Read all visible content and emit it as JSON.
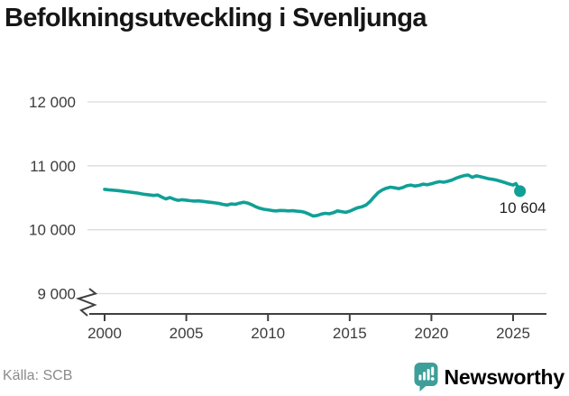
{
  "title": "Befolkningsutveckling i Svenljunga",
  "footer": {
    "source": "Källa: SCB",
    "brand": "Newsworthy"
  },
  "colors": {
    "line": "#10a096",
    "grid": "#dcdcdc",
    "axis": "#3f3f3f",
    "brand_teal": "#3e9e99",
    "end_label_text": "#1f1f1f"
  },
  "chart_data": {
    "type": "line",
    "title": "Befolkningsutveckling i Svenljunga",
    "xlabel": "",
    "ylabel": "",
    "ylim": [
      9000,
      12000
    ],
    "xlim": [
      2000,
      2025.5
    ],
    "y_axis_break": true,
    "grid": true,
    "legend": "none",
    "x_ticks": [
      2000,
      2005,
      2010,
      2015,
      2020,
      2025
    ],
    "y_ticks": [
      {
        "value": 9000,
        "label": "9 000"
      },
      {
        "value": 10000,
        "label": "10 000"
      },
      {
        "value": 11000,
        "label": "11 000"
      },
      {
        "value": 12000,
        "label": "12 000"
      }
    ],
    "end_label": "10 604",
    "series": [
      {
        "name": "Befolkning",
        "points": [
          [
            2000,
            10632
          ],
          [
            2000.25,
            10625
          ],
          [
            2000.5,
            10620
          ],
          [
            2000.75,
            10613
          ],
          [
            2001,
            10606
          ],
          [
            2001.25,
            10598
          ],
          [
            2001.5,
            10590
          ],
          [
            2001.75,
            10583
          ],
          [
            2002,
            10574
          ],
          [
            2002.25,
            10562
          ],
          [
            2002.5,
            10552
          ],
          [
            2002.75,
            10545
          ],
          [
            2003,
            10536
          ],
          [
            2003.25,
            10544
          ],
          [
            2003.5,
            10510
          ],
          [
            2003.75,
            10482
          ],
          [
            2004,
            10504
          ],
          [
            2004.25,
            10478
          ],
          [
            2004.5,
            10460
          ],
          [
            2004.75,
            10470
          ],
          [
            2005,
            10462
          ],
          [
            2005.25,
            10454
          ],
          [
            2005.5,
            10448
          ],
          [
            2005.75,
            10452
          ],
          [
            2006,
            10444
          ],
          [
            2006.25,
            10436
          ],
          [
            2006.5,
            10428
          ],
          [
            2006.75,
            10420
          ],
          [
            2007,
            10412
          ],
          [
            2007.25,
            10396
          ],
          [
            2007.5,
            10386
          ],
          [
            2007.75,
            10404
          ],
          [
            2008,
            10398
          ],
          [
            2008.25,
            10416
          ],
          [
            2008.5,
            10430
          ],
          [
            2008.75,
            10418
          ],
          [
            2009,
            10392
          ],
          [
            2009.25,
            10360
          ],
          [
            2009.5,
            10336
          ],
          [
            2009.75,
            10320
          ],
          [
            2010,
            10312
          ],
          [
            2010.25,
            10300
          ],
          [
            2010.5,
            10294
          ],
          [
            2010.75,
            10302
          ],
          [
            2011,
            10300
          ],
          [
            2011.25,
            10294
          ],
          [
            2011.5,
            10298
          ],
          [
            2011.75,
            10290
          ],
          [
            2012,
            10286
          ],
          [
            2012.25,
            10272
          ],
          [
            2012.5,
            10246
          ],
          [
            2012.75,
            10216
          ],
          [
            2013,
            10222
          ],
          [
            2013.25,
            10244
          ],
          [
            2013.5,
            10256
          ],
          [
            2013.75,
            10250
          ],
          [
            2014,
            10266
          ],
          [
            2014.25,
            10294
          ],
          [
            2014.5,
            10284
          ],
          [
            2014.75,
            10272
          ],
          [
            2015,
            10290
          ],
          [
            2015.25,
            10318
          ],
          [
            2015.5,
            10346
          ],
          [
            2015.75,
            10360
          ],
          [
            2016,
            10386
          ],
          [
            2016.25,
            10442
          ],
          [
            2016.5,
            10516
          ],
          [
            2016.75,
            10582
          ],
          [
            2017,
            10624
          ],
          [
            2017.25,
            10650
          ],
          [
            2017.5,
            10666
          ],
          [
            2017.75,
            10656
          ],
          [
            2018,
            10644
          ],
          [
            2018.25,
            10660
          ],
          [
            2018.5,
            10688
          ],
          [
            2018.75,
            10698
          ],
          [
            2019,
            10684
          ],
          [
            2019.25,
            10694
          ],
          [
            2019.5,
            10714
          ],
          [
            2019.75,
            10704
          ],
          [
            2020,
            10718
          ],
          [
            2020.25,
            10738
          ],
          [
            2020.5,
            10752
          ],
          [
            2020.75,
            10744
          ],
          [
            2021,
            10758
          ],
          [
            2021.25,
            10778
          ],
          [
            2021.5,
            10806
          ],
          [
            2021.75,
            10828
          ],
          [
            2022,
            10846
          ],
          [
            2022.25,
            10856
          ],
          [
            2022.5,
            10820
          ],
          [
            2022.75,
            10844
          ],
          [
            2023,
            10830
          ],
          [
            2023.25,
            10814
          ],
          [
            2023.5,
            10798
          ],
          [
            2023.75,
            10788
          ],
          [
            2024,
            10774
          ],
          [
            2024.25,
            10758
          ],
          [
            2024.5,
            10738
          ],
          [
            2024.75,
            10716
          ],
          [
            2025,
            10698
          ],
          [
            2025.17,
            10722
          ],
          [
            2025.42,
            10604
          ]
        ]
      }
    ]
  }
}
